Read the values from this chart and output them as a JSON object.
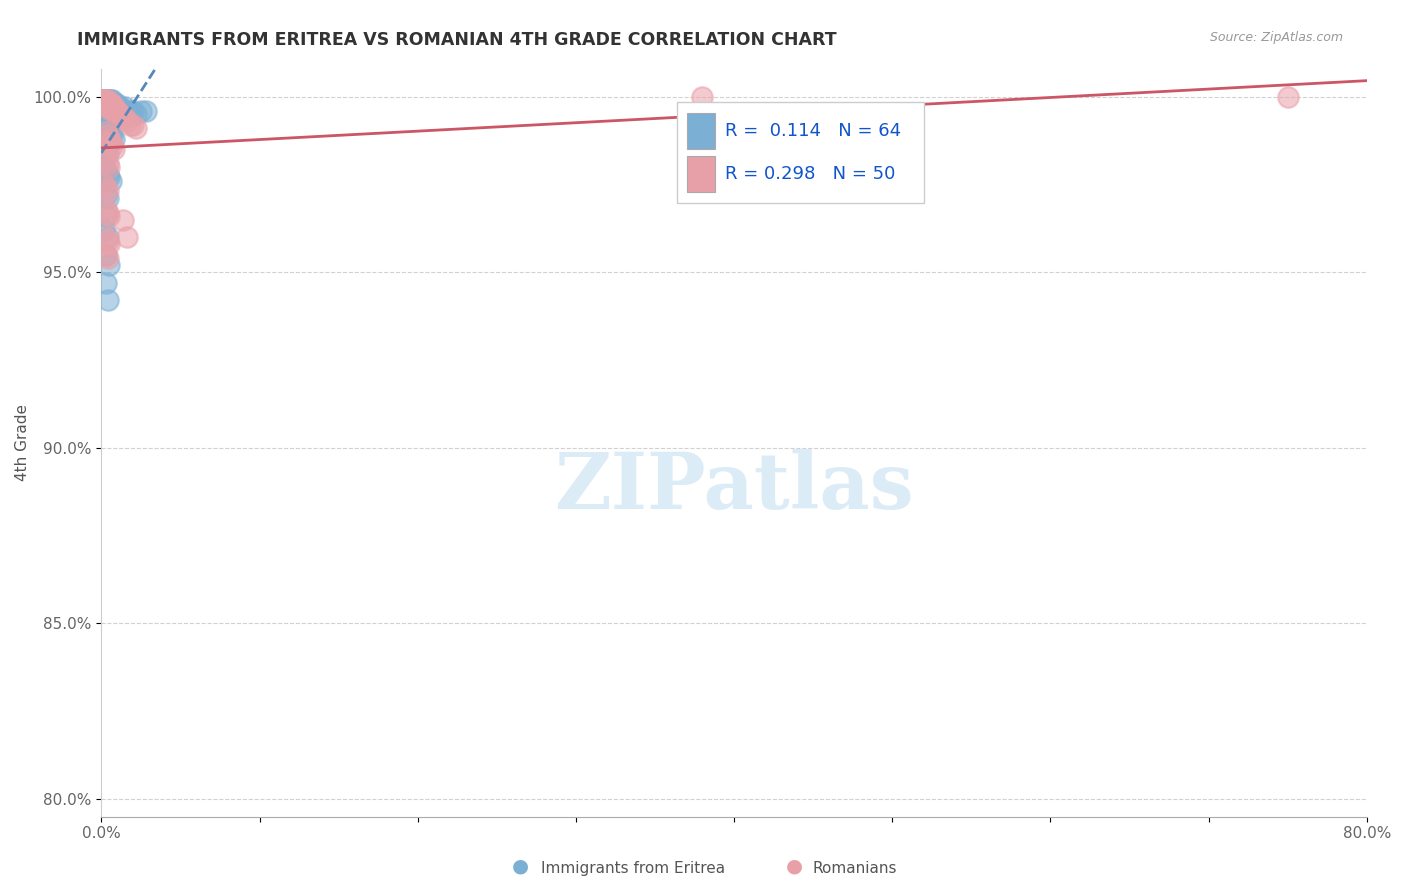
{
  "title": "IMMIGRANTS FROM ERITREA VS ROMANIAN 4TH GRADE CORRELATION CHART",
  "source": "Source: ZipAtlas.com",
  "ylabel": "4th Grade",
  "xlim": [
    0.0,
    0.8
  ],
  "ylim": [
    0.795,
    1.008
  ],
  "xticks": [
    0.0,
    0.1,
    0.2,
    0.3,
    0.4,
    0.5,
    0.6,
    0.7,
    0.8
  ],
  "xticklabels": [
    "0.0%",
    "",
    "",
    "",
    "",
    "",
    "",
    "",
    "80.0%"
  ],
  "yticks": [
    0.8,
    0.85,
    0.9,
    0.95,
    1.0
  ],
  "yticklabels": [
    "80.0%",
    "85.0%",
    "90.0%",
    "95.0%",
    "100.0%"
  ],
  "eritrea_R": 0.114,
  "eritrea_N": 64,
  "romanian_R": 0.298,
  "romanian_N": 50,
  "blue_color": "#7bafd4",
  "pink_color": "#e8a0a8",
  "trend_blue": "#5588bb",
  "trend_pink": "#cc5566",
  "watermark_color": "#cde4f5",
  "watermark_text": "ZIPatlas",
  "eritrea_x": [
    0.001,
    0.002,
    0.002,
    0.002,
    0.003,
    0.003,
    0.003,
    0.003,
    0.003,
    0.004,
    0.004,
    0.004,
    0.004,
    0.005,
    0.005,
    0.005,
    0.005,
    0.006,
    0.006,
    0.006,
    0.007,
    0.007,
    0.007,
    0.008,
    0.008,
    0.009,
    0.009,
    0.01,
    0.01,
    0.011,
    0.012,
    0.013,
    0.014,
    0.015,
    0.016,
    0.017,
    0.018,
    0.019,
    0.02,
    0.022,
    0.025,
    0.028,
    0.003,
    0.004,
    0.005,
    0.006,
    0.007,
    0.008,
    0.003,
    0.004,
    0.002,
    0.003,
    0.004,
    0.005,
    0.006,
    0.003,
    0.004,
    0.003,
    0.002,
    0.004,
    0.003,
    0.005,
    0.003,
    0.004
  ],
  "eritrea_y": [
    0.999,
    0.999,
    0.998,
    0.997,
    0.999,
    0.998,
    0.997,
    0.996,
    0.995,
    0.999,
    0.998,
    0.997,
    0.996,
    0.999,
    0.998,
    0.997,
    0.996,
    0.999,
    0.998,
    0.996,
    0.999,
    0.998,
    0.996,
    0.998,
    0.997,
    0.998,
    0.997,
    0.998,
    0.996,
    0.997,
    0.997,
    0.996,
    0.996,
    0.997,
    0.996,
    0.995,
    0.996,
    0.995,
    0.996,
    0.995,
    0.996,
    0.996,
    0.993,
    0.992,
    0.991,
    0.99,
    0.989,
    0.988,
    0.985,
    0.984,
    0.98,
    0.979,
    0.978,
    0.977,
    0.976,
    0.972,
    0.971,
    0.966,
    0.962,
    0.96,
    0.955,
    0.952,
    0.947,
    0.942
  ],
  "romanian_x": [
    0.001,
    0.002,
    0.002,
    0.003,
    0.003,
    0.003,
    0.004,
    0.004,
    0.005,
    0.005,
    0.006,
    0.006,
    0.007,
    0.007,
    0.008,
    0.008,
    0.009,
    0.01,
    0.011,
    0.012,
    0.013,
    0.015,
    0.016,
    0.018,
    0.02,
    0.022,
    0.003,
    0.004,
    0.005,
    0.006,
    0.007,
    0.008,
    0.003,
    0.004,
    0.005,
    0.002,
    0.003,
    0.004,
    0.003,
    0.004,
    0.005,
    0.014,
    0.003,
    0.004,
    0.005,
    0.003,
    0.004,
    0.38,
    0.75,
    0.016
  ],
  "romanian_y": [
    0.999,
    0.999,
    0.998,
    0.999,
    0.998,
    0.997,
    0.999,
    0.998,
    0.998,
    0.997,
    0.998,
    0.997,
    0.998,
    0.996,
    0.997,
    0.996,
    0.996,
    0.996,
    0.995,
    0.995,
    0.994,
    0.994,
    0.993,
    0.992,
    0.992,
    0.991,
    0.99,
    0.989,
    0.988,
    0.987,
    0.986,
    0.985,
    0.982,
    0.981,
    0.98,
    0.975,
    0.974,
    0.973,
    0.968,
    0.967,
    0.966,
    0.965,
    0.96,
    0.959,
    0.958,
    0.955,
    0.954,
    1.0,
    1.0,
    0.96
  ]
}
